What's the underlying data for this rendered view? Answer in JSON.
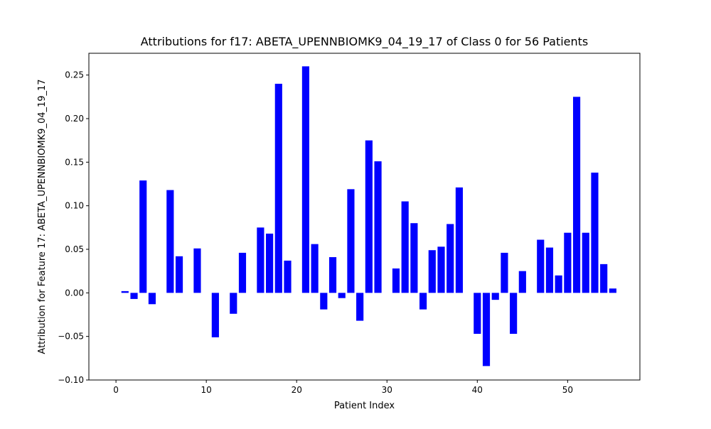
{
  "chart_data": {
    "type": "bar",
    "title": "Attributions for f17: ABETA_UPENNBIOMK9_04_19_17 of Class 0 for 56 Patients",
    "xlabel": "Patient Index",
    "ylabel": "Attribution for Feature 17: ABETA_UPENNBIOMK9_04_19_17",
    "xlim": [
      -3,
      58
    ],
    "ylim": [
      -0.1,
      0.275
    ],
    "xticks": [
      0,
      10,
      20,
      30,
      40,
      50
    ],
    "xtick_labels": [
      "0",
      "10",
      "20",
      "30",
      "40",
      "50"
    ],
    "yticks": [
      -0.1,
      -0.05,
      0.0,
      0.05,
      0.1,
      0.15,
      0.2,
      0.25
    ],
    "ytick_labels": [
      "−0.10",
      "−0.05",
      "0.00",
      "0.05",
      "0.10",
      "0.15",
      "0.20",
      "0.25"
    ],
    "grid": false,
    "bar_color": "#0000ff",
    "x": [
      0,
      1,
      2,
      3,
      4,
      5,
      6,
      7,
      8,
      9,
      10,
      11,
      12,
      13,
      14,
      15,
      16,
      17,
      18,
      19,
      20,
      21,
      22,
      23,
      24,
      25,
      26,
      27,
      28,
      29,
      30,
      31,
      32,
      33,
      34,
      35,
      36,
      37,
      38,
      39,
      40,
      41,
      42,
      43,
      44,
      45,
      46,
      47,
      48,
      49,
      50,
      51,
      52,
      53,
      54,
      55
    ],
    "values": [
      0.0,
      0.002,
      -0.007,
      0.129,
      -0.013,
      0.0,
      0.118,
      0.042,
      0.0,
      0.051,
      0.0,
      -0.051,
      0.0,
      -0.024,
      0.046,
      0.0,
      0.075,
      0.068,
      0.24,
      0.037,
      0.0,
      0.26,
      0.056,
      -0.019,
      0.041,
      -0.006,
      0.119,
      -0.032,
      0.175,
      0.151,
      0.0,
      0.028,
      0.105,
      0.08,
      -0.019,
      0.049,
      0.053,
      0.079,
      0.121,
      0.0,
      -0.047,
      -0.084,
      -0.008,
      0.046,
      -0.047,
      0.025,
      0.0,
      0.061,
      0.052,
      0.02,
      0.069,
      0.225,
      0.069,
      0.138,
      0.033,
      0.005
    ]
  }
}
